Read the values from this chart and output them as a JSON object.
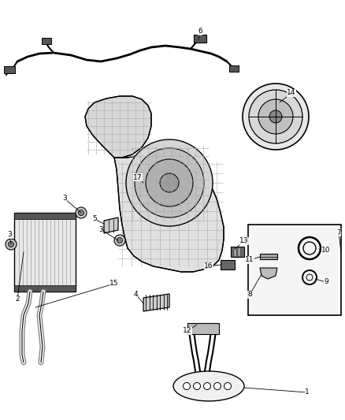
{
  "background_color": "#ffffff",
  "fig_width": 4.38,
  "fig_height": 5.33,
  "dpi": 100,
  "line_color": "#000000",
  "gray_fill": "#d0d0d0",
  "dark_gray": "#555555",
  "light_gray": "#eeeeee"
}
